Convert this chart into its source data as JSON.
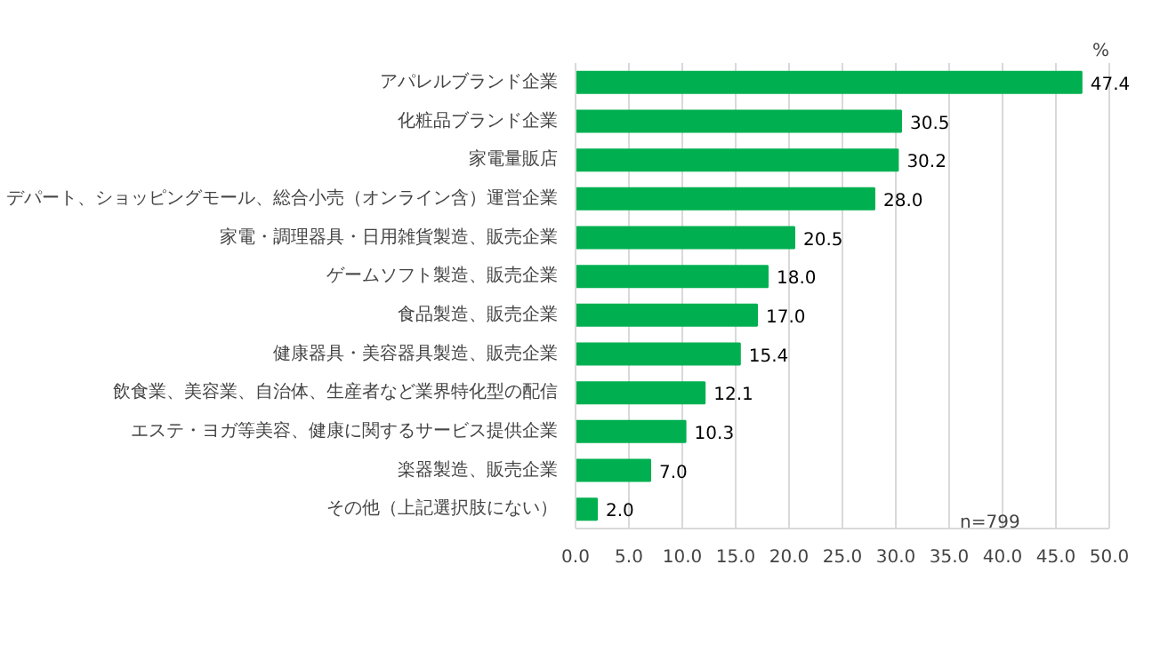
{
  "chart_data": {
    "type": "bar",
    "orientation": "horizontal",
    "categories": [
      "アパレルブランド企業",
      "化粧品ブランド企業",
      "家電量販店",
      "デパート、ショッピングモール、総合小売（オンライン含）運営企業",
      "家電・調理器具・日用雑貨製造、販売企業",
      "ゲームソフト製造、販売企業",
      "食品製造、販売企業",
      "健康器具・美容器具製造、販売企業",
      "飲食業、美容業、自治体、生産者など業界特化型の配信",
      "エステ・ヨガ等美容、健康に関するサービス提供企業",
      "楽器製造、販売企業",
      "その他（上記選択肢にない）"
    ],
    "values": [
      47.4,
      30.5,
      30.2,
      28.0,
      20.5,
      18.0,
      17.0,
      15.4,
      12.1,
      10.3,
      7.0,
      2.0
    ],
    "value_labels": [
      "47.4",
      "30.5",
      "30.2",
      "28.0",
      "20.5",
      "18.0",
      "17.0",
      "15.4",
      "12.1",
      "10.3",
      "7.0",
      "2.0"
    ],
    "color": "#00b050",
    "xlim": [
      0,
      50
    ],
    "xticks": [
      {
        "value": 0,
        "label": "0.0"
      },
      {
        "value": 5,
        "label": "5.0"
      },
      {
        "value": 10,
        "label": "10.0"
      },
      {
        "value": 15,
        "label": "15.0"
      },
      {
        "value": 20,
        "label": "20.0"
      },
      {
        "value": 25,
        "label": "25.0"
      },
      {
        "value": 30,
        "label": "30.0"
      },
      {
        "value": 35,
        "label": "35.0"
      },
      {
        "value": 40,
        "label": "40.0"
      },
      {
        "value": 45,
        "label": "45.0"
      },
      {
        "value": 50,
        "label": "50.0"
      }
    ],
    "grid": "x",
    "annotations": [
      "%",
      "n=799"
    ]
  }
}
